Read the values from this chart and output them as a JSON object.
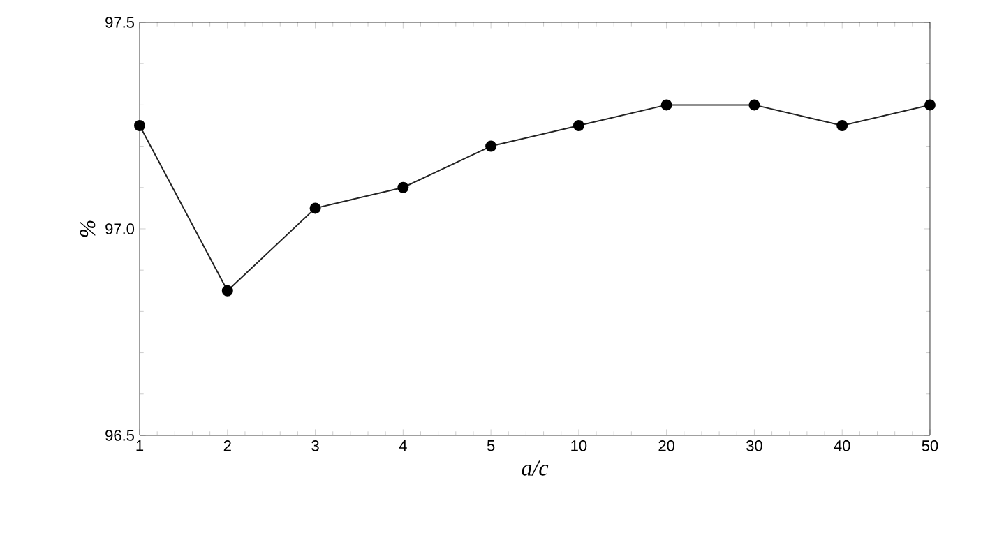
{
  "chart_data": {
    "type": "line",
    "xlabel": "a/c",
    "ylabel": "%",
    "categories": [
      "1",
      "2",
      "3",
      "4",
      "5",
      "10",
      "20",
      "30",
      "40",
      "50"
    ],
    "values": [
      97.25,
      96.85,
      97.05,
      97.1,
      97.2,
      97.25,
      97.3,
      97.3,
      97.25,
      97.3
    ],
    "color": "#222222",
    "marker": "circle",
    "line_style": "solid",
    "grid": false,
    "ylim": [
      96.5,
      97.5
    ],
    "yticks": [
      {
        "value": 96.5,
        "label": "96.5"
      },
      {
        "value": 97.0,
        "label": "97.0"
      },
      {
        "value": 97.5,
        "label": "97.5"
      }
    ]
  }
}
